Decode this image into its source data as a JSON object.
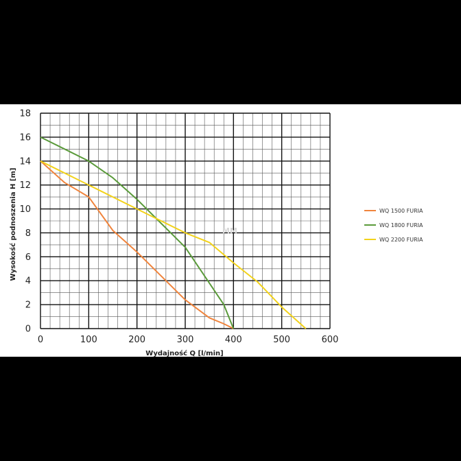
{
  "chart_data": {
    "type": "line",
    "title": "",
    "xlabel": "Wydajność Q [l/min]",
    "ylabel": "Wysokość podnoszenia H [m]",
    "xlim": [
      0,
      600
    ],
    "ylim": [
      0,
      18
    ],
    "x_ticks": [
      0,
      100,
      200,
      300,
      400,
      500,
      600
    ],
    "y_ticks": [
      0,
      2,
      4,
      6,
      8,
      10,
      12,
      14,
      16,
      18
    ],
    "grid": true,
    "legend_position": "right",
    "watermark": "MM",
    "series": [
      {
        "name": "WQ 1500 FURIA",
        "color": "#f0843c",
        "points": [
          [
            0,
            14
          ],
          [
            50,
            12.2
          ],
          [
            100,
            11
          ],
          [
            150,
            8.2
          ],
          [
            200,
            6.4
          ],
          [
            250,
            4.4
          ],
          [
            300,
            2.4
          ],
          [
            350,
            0.9
          ],
          [
            380,
            0.4
          ],
          [
            400,
            0
          ]
        ]
      },
      {
        "name": "WQ 1800 FURIA",
        "color": "#5a9a3a",
        "points": [
          [
            0,
            16
          ],
          [
            50,
            15
          ],
          [
            100,
            14
          ],
          [
            150,
            12.6
          ],
          [
            200,
            10.8
          ],
          [
            250,
            8.8
          ],
          [
            300,
            6.8
          ],
          [
            350,
            3.8
          ],
          [
            380,
            2
          ],
          [
            400,
            0
          ]
        ]
      },
      {
        "name": "WQ 2200 FURIA",
        "color": "#f2d21a",
        "points": [
          [
            0,
            14
          ],
          [
            100,
            12
          ],
          [
            200,
            10
          ],
          [
            300,
            8
          ],
          [
            350,
            7.2
          ],
          [
            400,
            5.5
          ],
          [
            450,
            3.9
          ],
          [
            500,
            1.8
          ],
          [
            550,
            0
          ]
        ]
      }
    ]
  }
}
